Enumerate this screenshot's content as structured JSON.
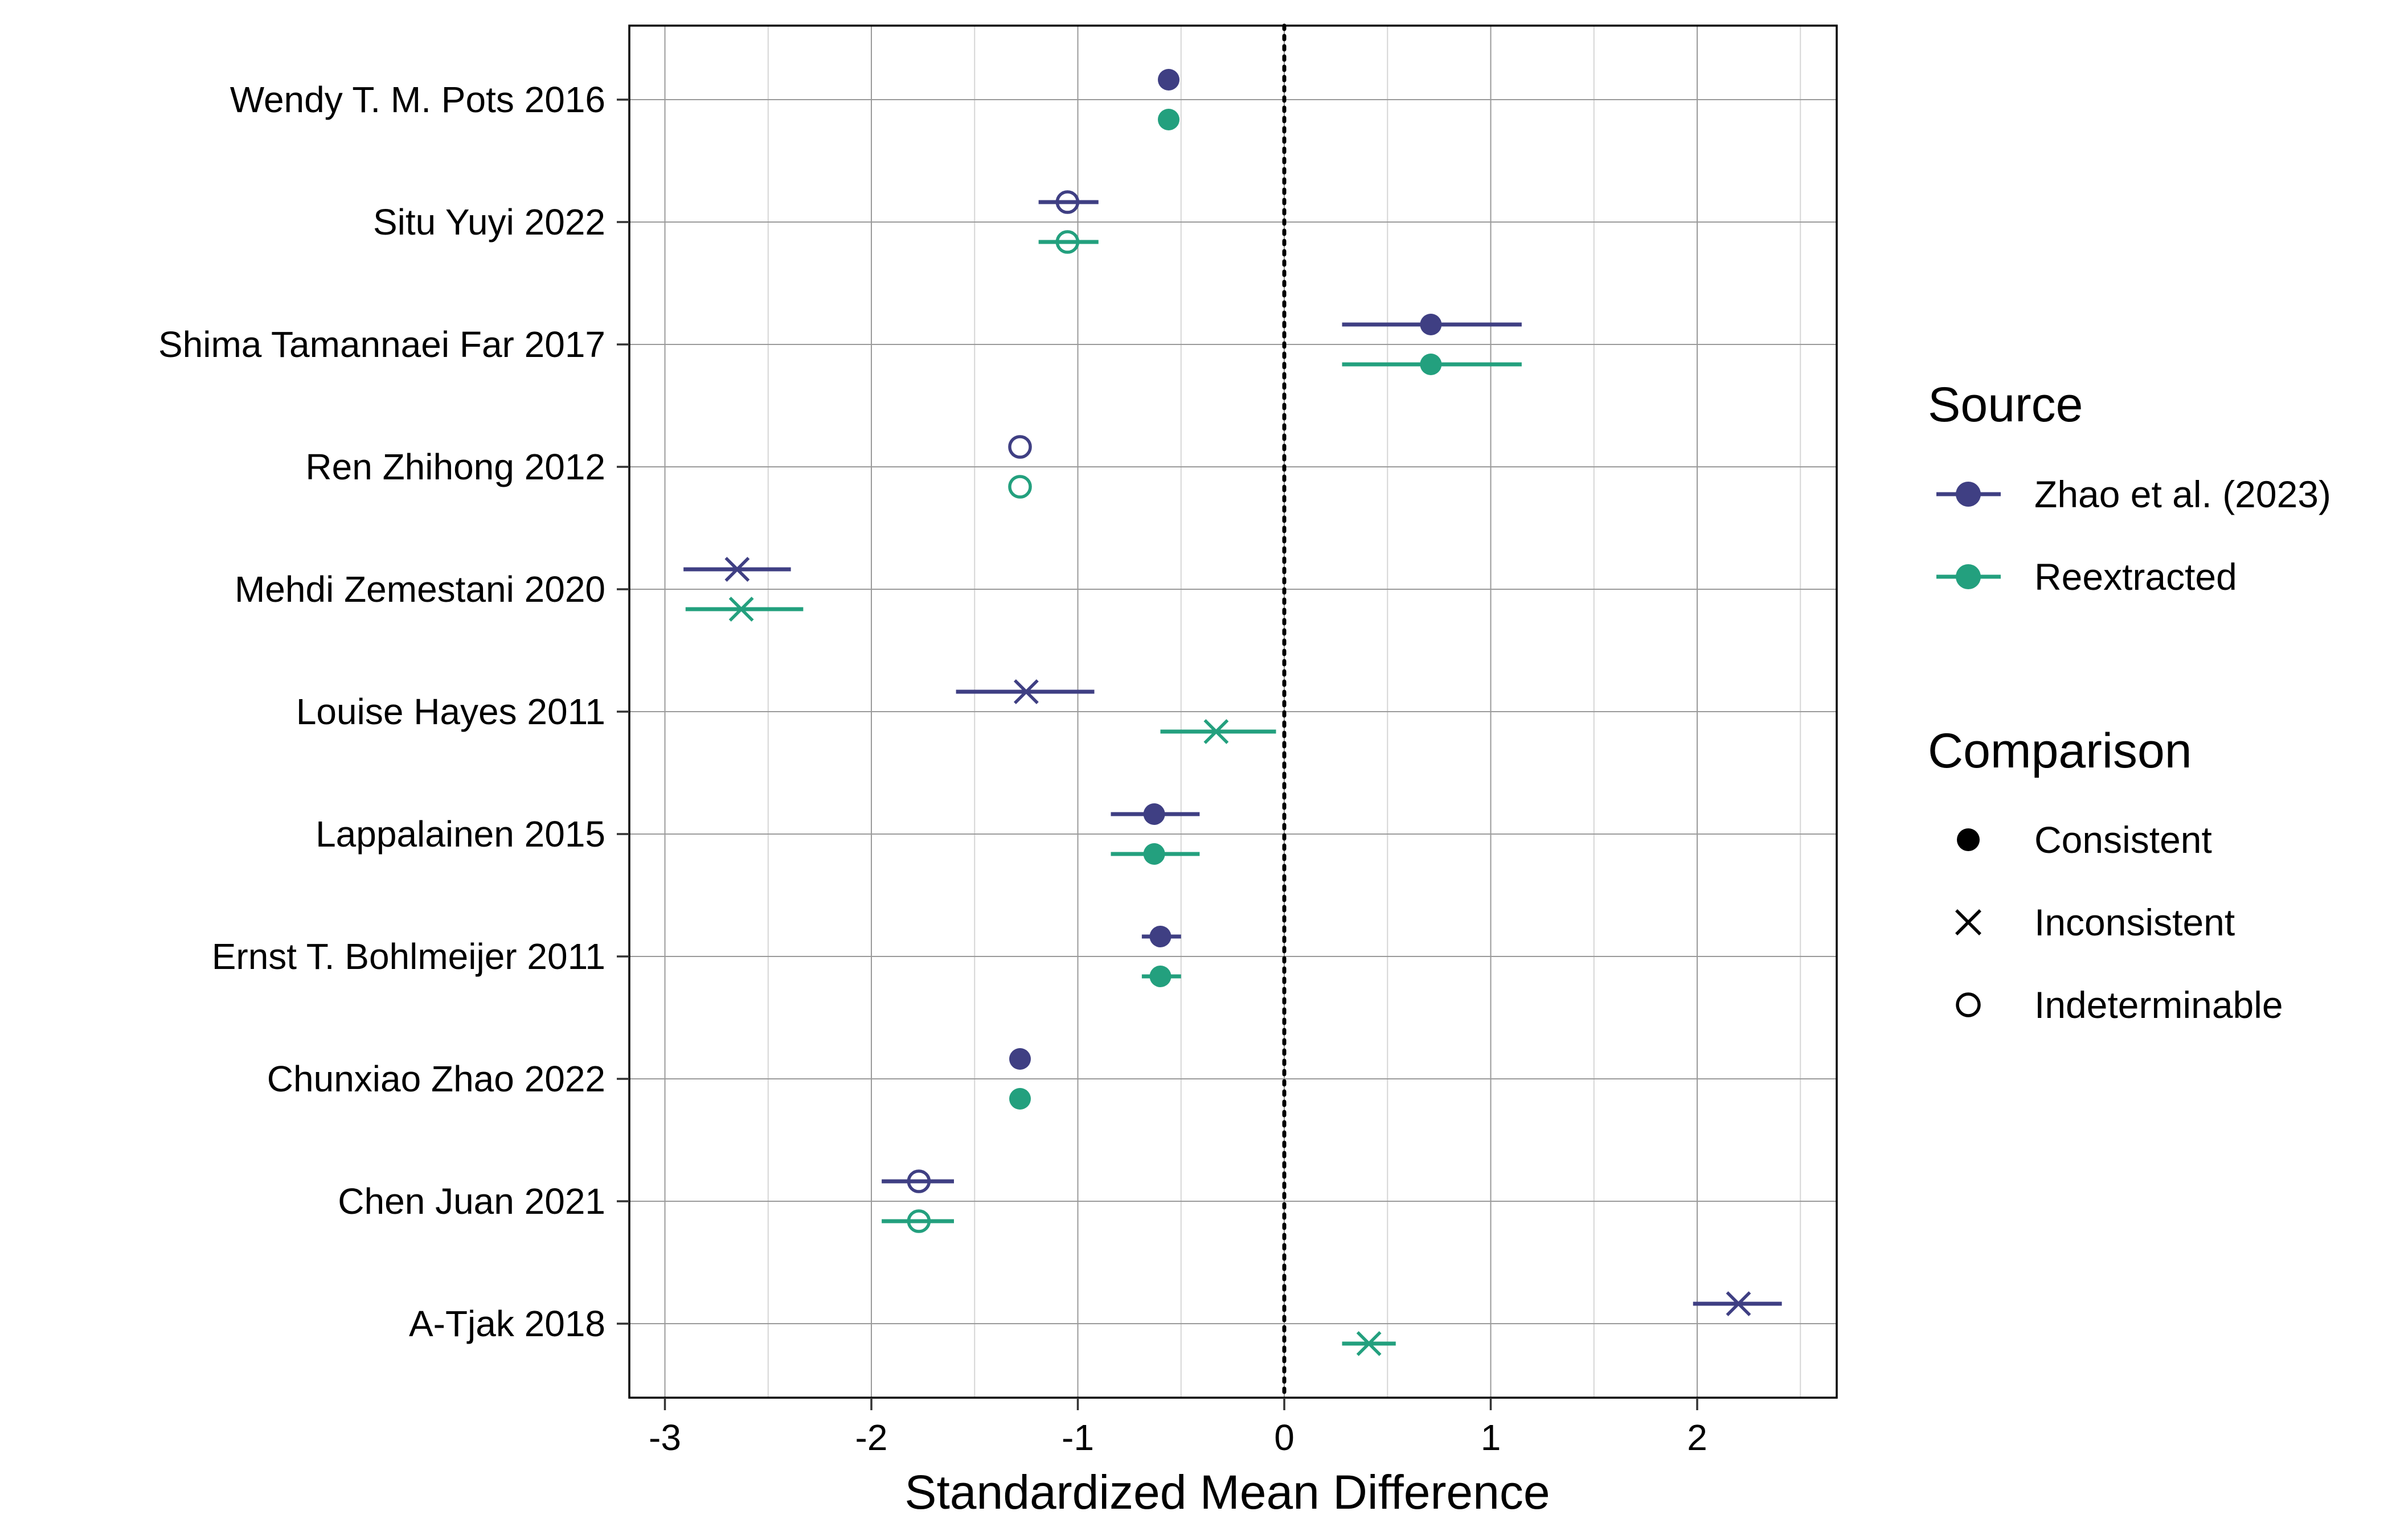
{
  "chart_data": {
    "type": "scatter",
    "title": "",
    "xlabel": "Standardized Mean Difference",
    "ylabel": "",
    "xlim": [
      -3.15,
      2.7
    ],
    "x_ticks": [
      -3,
      -2,
      -1,
      0,
      1,
      2
    ],
    "x_tick_labels": [
      "-3",
      "-2",
      "-1",
      "0",
      "1",
      "2"
    ],
    "reference_line_x": 0,
    "grid": true,
    "legend_placement": "right",
    "categories": [
      "Wendy T. M. Pots 2016",
      "Situ Yuyi 2022",
      "Shima Tamannaei Far 2017",
      "Ren Zhihong 2012",
      "Mehdi Zemestani 2020",
      "Louise Hayes 2011",
      "Lappalainen 2015",
      "Ernst T. Bohlmeijer 2011",
      "Chunxiao Zhao 2022",
      "Chen Juan 2021",
      "A-Tjak 2018"
    ],
    "series": [
      {
        "name": "Zhao et al. (2023)",
        "color": "#3f3f83",
        "points": [
          {
            "study": "Wendy T. M. Pots 2016",
            "smd": -0.56,
            "ci_low": null,
            "ci_high": null,
            "comparison": "Consistent"
          },
          {
            "study": "Situ Yuyi 2022",
            "smd": -1.05,
            "ci_low": -1.19,
            "ci_high": -0.9,
            "comparison": "Indeterminable"
          },
          {
            "study": "Shima Tamannaei Far 2017",
            "smd": 0.71,
            "ci_low": 0.28,
            "ci_high": 1.15,
            "comparison": "Consistent"
          },
          {
            "study": "Ren Zhihong 2012",
            "smd": -1.28,
            "ci_low": null,
            "ci_high": null,
            "comparison": "Indeterminable"
          },
          {
            "study": "Mehdi Zemestani 2020",
            "smd": -2.65,
            "ci_low": -2.91,
            "ci_high": -2.39,
            "comparison": "Inconsistent"
          },
          {
            "study": "Louise Hayes 2011",
            "smd": -1.25,
            "ci_low": -1.59,
            "ci_high": -0.92,
            "comparison": "Inconsistent"
          },
          {
            "study": "Lappalainen 2015",
            "smd": -0.63,
            "ci_low": -0.84,
            "ci_high": -0.41,
            "comparison": "Consistent"
          },
          {
            "study": "Ernst T. Bohlmeijer 2011",
            "smd": -0.6,
            "ci_low": -0.69,
            "ci_high": -0.5,
            "comparison": "Consistent"
          },
          {
            "study": "Chunxiao Zhao 2022",
            "smd": -1.28,
            "ci_low": null,
            "ci_high": null,
            "comparison": "Consistent"
          },
          {
            "study": "Chen Juan 2021",
            "smd": -1.77,
            "ci_low": -1.95,
            "ci_high": -1.6,
            "comparison": "Indeterminable"
          },
          {
            "study": "A-Tjak 2018",
            "smd": 2.2,
            "ci_low": 1.98,
            "ci_high": 2.41,
            "comparison": "Inconsistent"
          }
        ]
      },
      {
        "name": "Reextracted",
        "color": "#23a07e",
        "points": [
          {
            "study": "Wendy T. M. Pots 2016",
            "smd": -0.56,
            "ci_low": null,
            "ci_high": null,
            "comparison": "Consistent"
          },
          {
            "study": "Situ Yuyi 2022",
            "smd": -1.05,
            "ci_low": -1.19,
            "ci_high": -0.9,
            "comparison": "Indeterminable"
          },
          {
            "study": "Shima Tamannaei Far 2017",
            "smd": 0.71,
            "ci_low": 0.28,
            "ci_high": 1.15,
            "comparison": "Consistent"
          },
          {
            "study": "Ren Zhihong 2012",
            "smd": -1.28,
            "ci_low": null,
            "ci_high": null,
            "comparison": "Indeterminable"
          },
          {
            "study": "Mehdi Zemestani 2020",
            "smd": -2.63,
            "ci_low": -2.9,
            "ci_high": -2.33,
            "comparison": "Inconsistent"
          },
          {
            "study": "Louise Hayes 2011",
            "smd": -0.33,
            "ci_low": -0.6,
            "ci_high": -0.04,
            "comparison": "Inconsistent"
          },
          {
            "study": "Lappalainen 2015",
            "smd": -0.63,
            "ci_low": -0.84,
            "ci_high": -0.41,
            "comparison": "Consistent"
          },
          {
            "study": "Ernst T. Bohlmeijer 2011",
            "smd": -0.6,
            "ci_low": -0.69,
            "ci_high": -0.5,
            "comparison": "Consistent"
          },
          {
            "study": "Chunxiao Zhao 2022",
            "smd": -1.28,
            "ci_low": null,
            "ci_high": null,
            "comparison": "Consistent"
          },
          {
            "study": "Chen Juan 2021",
            "smd": -1.77,
            "ci_low": -1.95,
            "ci_high": -1.6,
            "comparison": "Indeterminable"
          },
          {
            "study": "A-Tjak 2018",
            "smd": 0.41,
            "ci_low": 0.28,
            "ci_high": 0.54,
            "comparison": "Inconsistent"
          }
        ]
      }
    ],
    "legend": {
      "source": {
        "title": "Source",
        "entries": [
          {
            "label": "Zhao et al. (2023)",
            "color": "#3f3f83"
          },
          {
            "label": "Reextracted",
            "color": "#23a07e"
          }
        ]
      },
      "comparison": {
        "title": "Comparison",
        "entries": [
          {
            "label": "Consistent",
            "shape": "filled-circle"
          },
          {
            "label": "Inconsistent",
            "shape": "cross"
          },
          {
            "label": "Indeterminable",
            "shape": "open-circle"
          }
        ]
      }
    }
  }
}
